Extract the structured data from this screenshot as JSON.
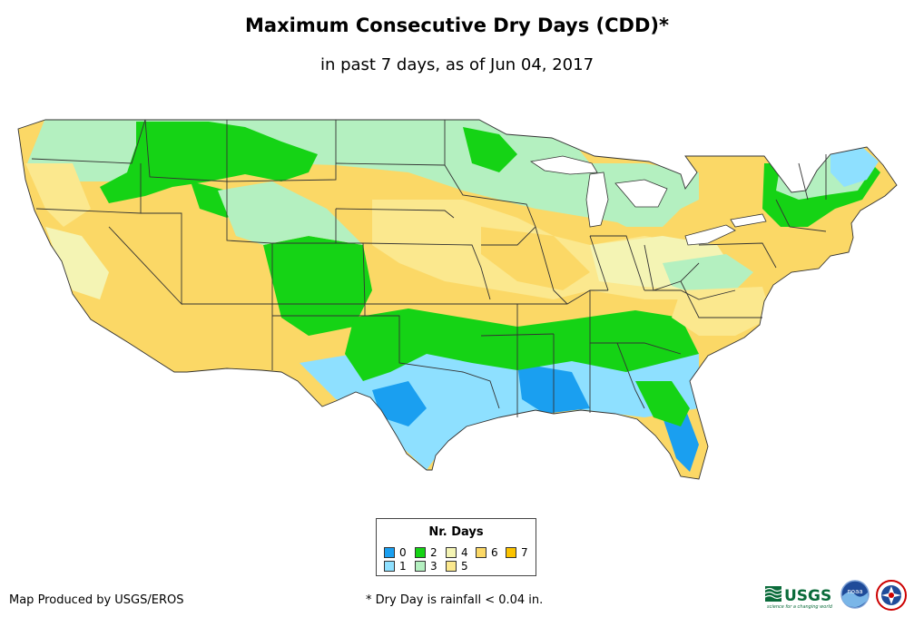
{
  "title": "Maximum Consecutive Dry Days (CDD)*",
  "subtitle": "in past 7 days, as of Jun 04, 2017",
  "legend": {
    "title": "Nr. Days",
    "items": [
      {
        "label": "0",
        "color": "#1a9ff0"
      },
      {
        "label": "1",
        "color": "#8ee0ff"
      },
      {
        "label": "2",
        "color": "#15d315"
      },
      {
        "label": "3",
        "color": "#b4f0c0"
      },
      {
        "label": "4",
        "color": "#f4f4b4"
      },
      {
        "label": "5",
        "color": "#fbe88e"
      },
      {
        "label": "6",
        "color": "#fbd866"
      },
      {
        "label": "7",
        "color": "#fbc300"
      }
    ]
  },
  "credit": "Map Produced by USGS/EROS",
  "footnote": "* Dry Day is rainfall < 0.04 in.",
  "logos": {
    "usgs_text": "USGS",
    "usgs_tagline": "science for a changing world",
    "noaa_text": "noaa"
  }
}
